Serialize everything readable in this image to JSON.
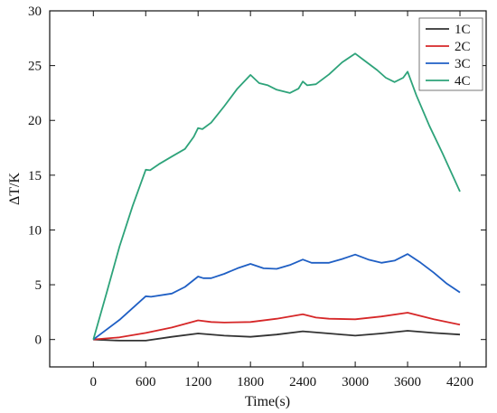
{
  "chart_data": {
    "type": "line",
    "xlabel": "Time(s)",
    "ylabel": "ΔT/K",
    "xlim": [
      -500,
      4500
    ],
    "ylim": [
      -2.5,
      30
    ],
    "xticks": [
      0,
      600,
      1200,
      1800,
      2400,
      3000,
      3600,
      4200
    ],
    "yticks": [
      0,
      5,
      10,
      15,
      20,
      25,
      30
    ],
    "grid": false,
    "legend": "top-right",
    "series": [
      {
        "name": "1C",
        "color": "#333333",
        "points": [
          [
            0,
            0
          ],
          [
            300,
            -0.1
          ],
          [
            600,
            -0.1
          ],
          [
            900,
            0.25
          ],
          [
            1200,
            0.55
          ],
          [
            1500,
            0.35
          ],
          [
            1800,
            0.25
          ],
          [
            2100,
            0.45
          ],
          [
            2400,
            0.75
          ],
          [
            2700,
            0.55
          ],
          [
            3000,
            0.35
          ],
          [
            3300,
            0.55
          ],
          [
            3600,
            0.8
          ],
          [
            3900,
            0.6
          ],
          [
            4200,
            0.45
          ]
        ]
      },
      {
        "name": "2C",
        "color": "#d62728",
        "points": [
          [
            0,
            0
          ],
          [
            300,
            0.2
          ],
          [
            600,
            0.6
          ],
          [
            900,
            1.1
          ],
          [
            1200,
            1.75
          ],
          [
            1350,
            1.6
          ],
          [
            1500,
            1.55
          ],
          [
            1800,
            1.6
          ],
          [
            2100,
            1.9
          ],
          [
            2400,
            2.3
          ],
          [
            2550,
            2.0
          ],
          [
            2700,
            1.9
          ],
          [
            3000,
            1.85
          ],
          [
            3300,
            2.1
          ],
          [
            3600,
            2.45
          ],
          [
            3900,
            1.85
          ],
          [
            4200,
            1.35
          ]
        ]
      },
      {
        "name": "3C",
        "color": "#1f5fc4",
        "points": [
          [
            0,
            0
          ],
          [
            300,
            1.8
          ],
          [
            600,
            3.95
          ],
          [
            660,
            3.9
          ],
          [
            900,
            4.2
          ],
          [
            1050,
            4.8
          ],
          [
            1200,
            5.75
          ],
          [
            1260,
            5.6
          ],
          [
            1350,
            5.6
          ],
          [
            1500,
            6.0
          ],
          [
            1650,
            6.5
          ],
          [
            1800,
            6.9
          ],
          [
            1950,
            6.5
          ],
          [
            2100,
            6.45
          ],
          [
            2250,
            6.8
          ],
          [
            2400,
            7.3
          ],
          [
            2500,
            7.0
          ],
          [
            2700,
            7.0
          ],
          [
            2850,
            7.35
          ],
          [
            3000,
            7.75
          ],
          [
            3150,
            7.3
          ],
          [
            3300,
            7.0
          ],
          [
            3450,
            7.2
          ],
          [
            3600,
            7.8
          ],
          [
            3750,
            7.0
          ],
          [
            3900,
            6.1
          ],
          [
            4050,
            5.1
          ],
          [
            4200,
            4.3
          ]
        ]
      },
      {
        "name": "4C",
        "color": "#2ea37a",
        "points": [
          [
            0,
            0
          ],
          [
            150,
            4.2
          ],
          [
            300,
            8.5
          ],
          [
            450,
            12.2
          ],
          [
            600,
            15.5
          ],
          [
            650,
            15.45
          ],
          [
            750,
            16.0
          ],
          [
            900,
            16.7
          ],
          [
            1050,
            17.4
          ],
          [
            1150,
            18.5
          ],
          [
            1200,
            19.3
          ],
          [
            1250,
            19.2
          ],
          [
            1350,
            19.8
          ],
          [
            1500,
            21.3
          ],
          [
            1650,
            22.9
          ],
          [
            1800,
            24.15
          ],
          [
            1900,
            23.4
          ],
          [
            2000,
            23.2
          ],
          [
            2100,
            22.8
          ],
          [
            2250,
            22.5
          ],
          [
            2350,
            22.9
          ],
          [
            2400,
            23.55
          ],
          [
            2450,
            23.2
          ],
          [
            2550,
            23.3
          ],
          [
            2700,
            24.2
          ],
          [
            2850,
            25.3
          ],
          [
            3000,
            26.1
          ],
          [
            3100,
            25.5
          ],
          [
            3250,
            24.6
          ],
          [
            3350,
            23.9
          ],
          [
            3450,
            23.5
          ],
          [
            3550,
            23.9
          ],
          [
            3600,
            24.45
          ],
          [
            3700,
            22.3
          ],
          [
            3850,
            19.5
          ],
          [
            4000,
            17.0
          ],
          [
            4200,
            13.5
          ]
        ]
      }
    ]
  }
}
